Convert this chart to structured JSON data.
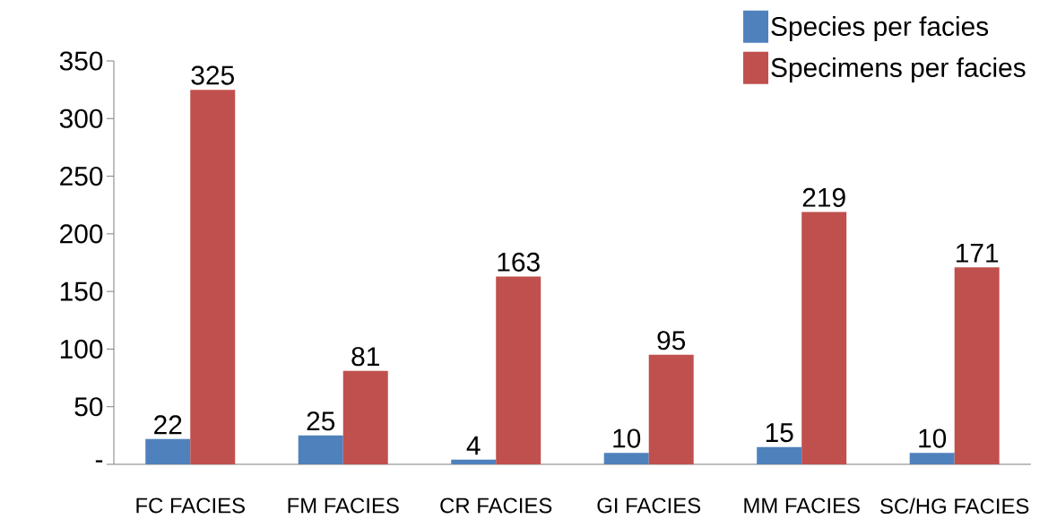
{
  "chart_data": {
    "type": "bar",
    "categories": [
      "FC FACIES",
      "FM FACIES",
      "CR FACIES",
      "GI FACIES",
      "MM FACIES",
      "SC/HG FACIES"
    ],
    "series": [
      {
        "name": "Species per facies",
        "color": "#4f81bd",
        "values": [
          22,
          25,
          4,
          10,
          15,
          10
        ]
      },
      {
        "name": "Specimens per facies",
        "color": "#c0504d",
        "values": [
          325,
          81,
          163,
          95,
          219,
          171
        ]
      }
    ],
    "ylim": [
      0,
      350
    ],
    "yticks": [
      {
        "value": 0,
        "label": "-"
      },
      50,
      100,
      150,
      200,
      250,
      300,
      350
    ],
    "data_labels": true,
    "grid": false,
    "legend": "top right"
  }
}
